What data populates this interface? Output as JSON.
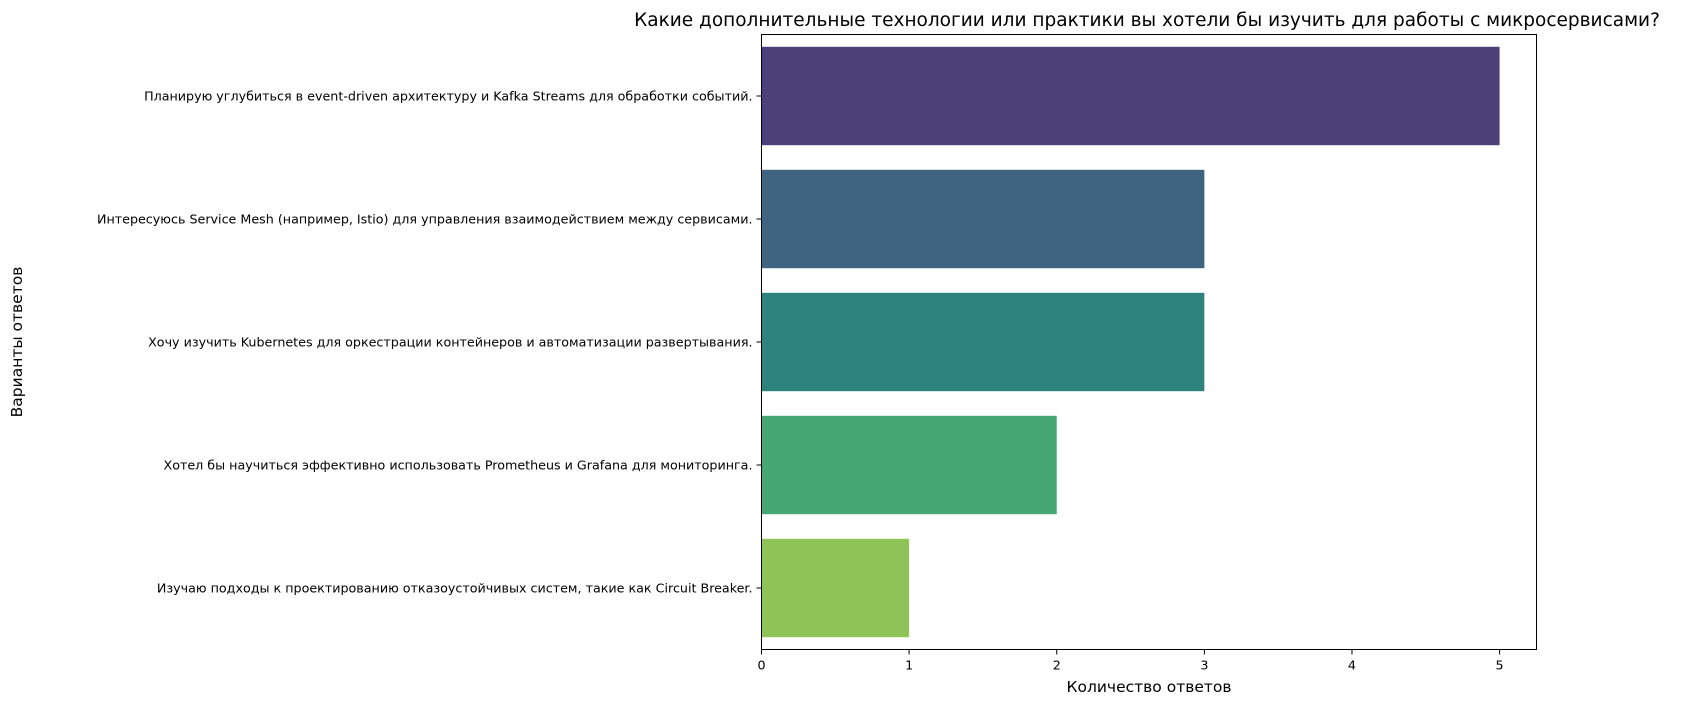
{
  "chart_data": {
    "type": "bar",
    "orientation": "horizontal",
    "title": "Какие дополнительные технологии или практики вы хотели бы изучить для работы с микросервисами?",
    "xlabel": "Количество ответов",
    "ylabel": "Варианты ответов",
    "categories": [
      "Планирую углубиться в event-driven архитектуру и Kafka Streams для обработки событий.",
      "Интересуюсь Service Mesh (например, Istio) для управления взаимодействием между сервисами.",
      "Хочу изучить Kubernetes для оркестрации контейнеров и автоматизации развертывания.",
      "Хотел бы научиться эффективно использовать Prometheus и Grafana для мониторинга.",
      "Изучаю подходы к проектированию отказоустойчивых систем, такие как Circuit Breaker."
    ],
    "values": [
      5,
      3,
      3,
      2,
      1
    ],
    "colors": [
      "#4b4079",
      "#3e6481",
      "#2e837f",
      "#46a774",
      "#8ec457"
    ],
    "xlim": [
      0,
      5.25
    ],
    "xticks": [
      "0",
      "1",
      "2",
      "3",
      "4",
      "5"
    ],
    "grid": false,
    "legend": "none"
  }
}
